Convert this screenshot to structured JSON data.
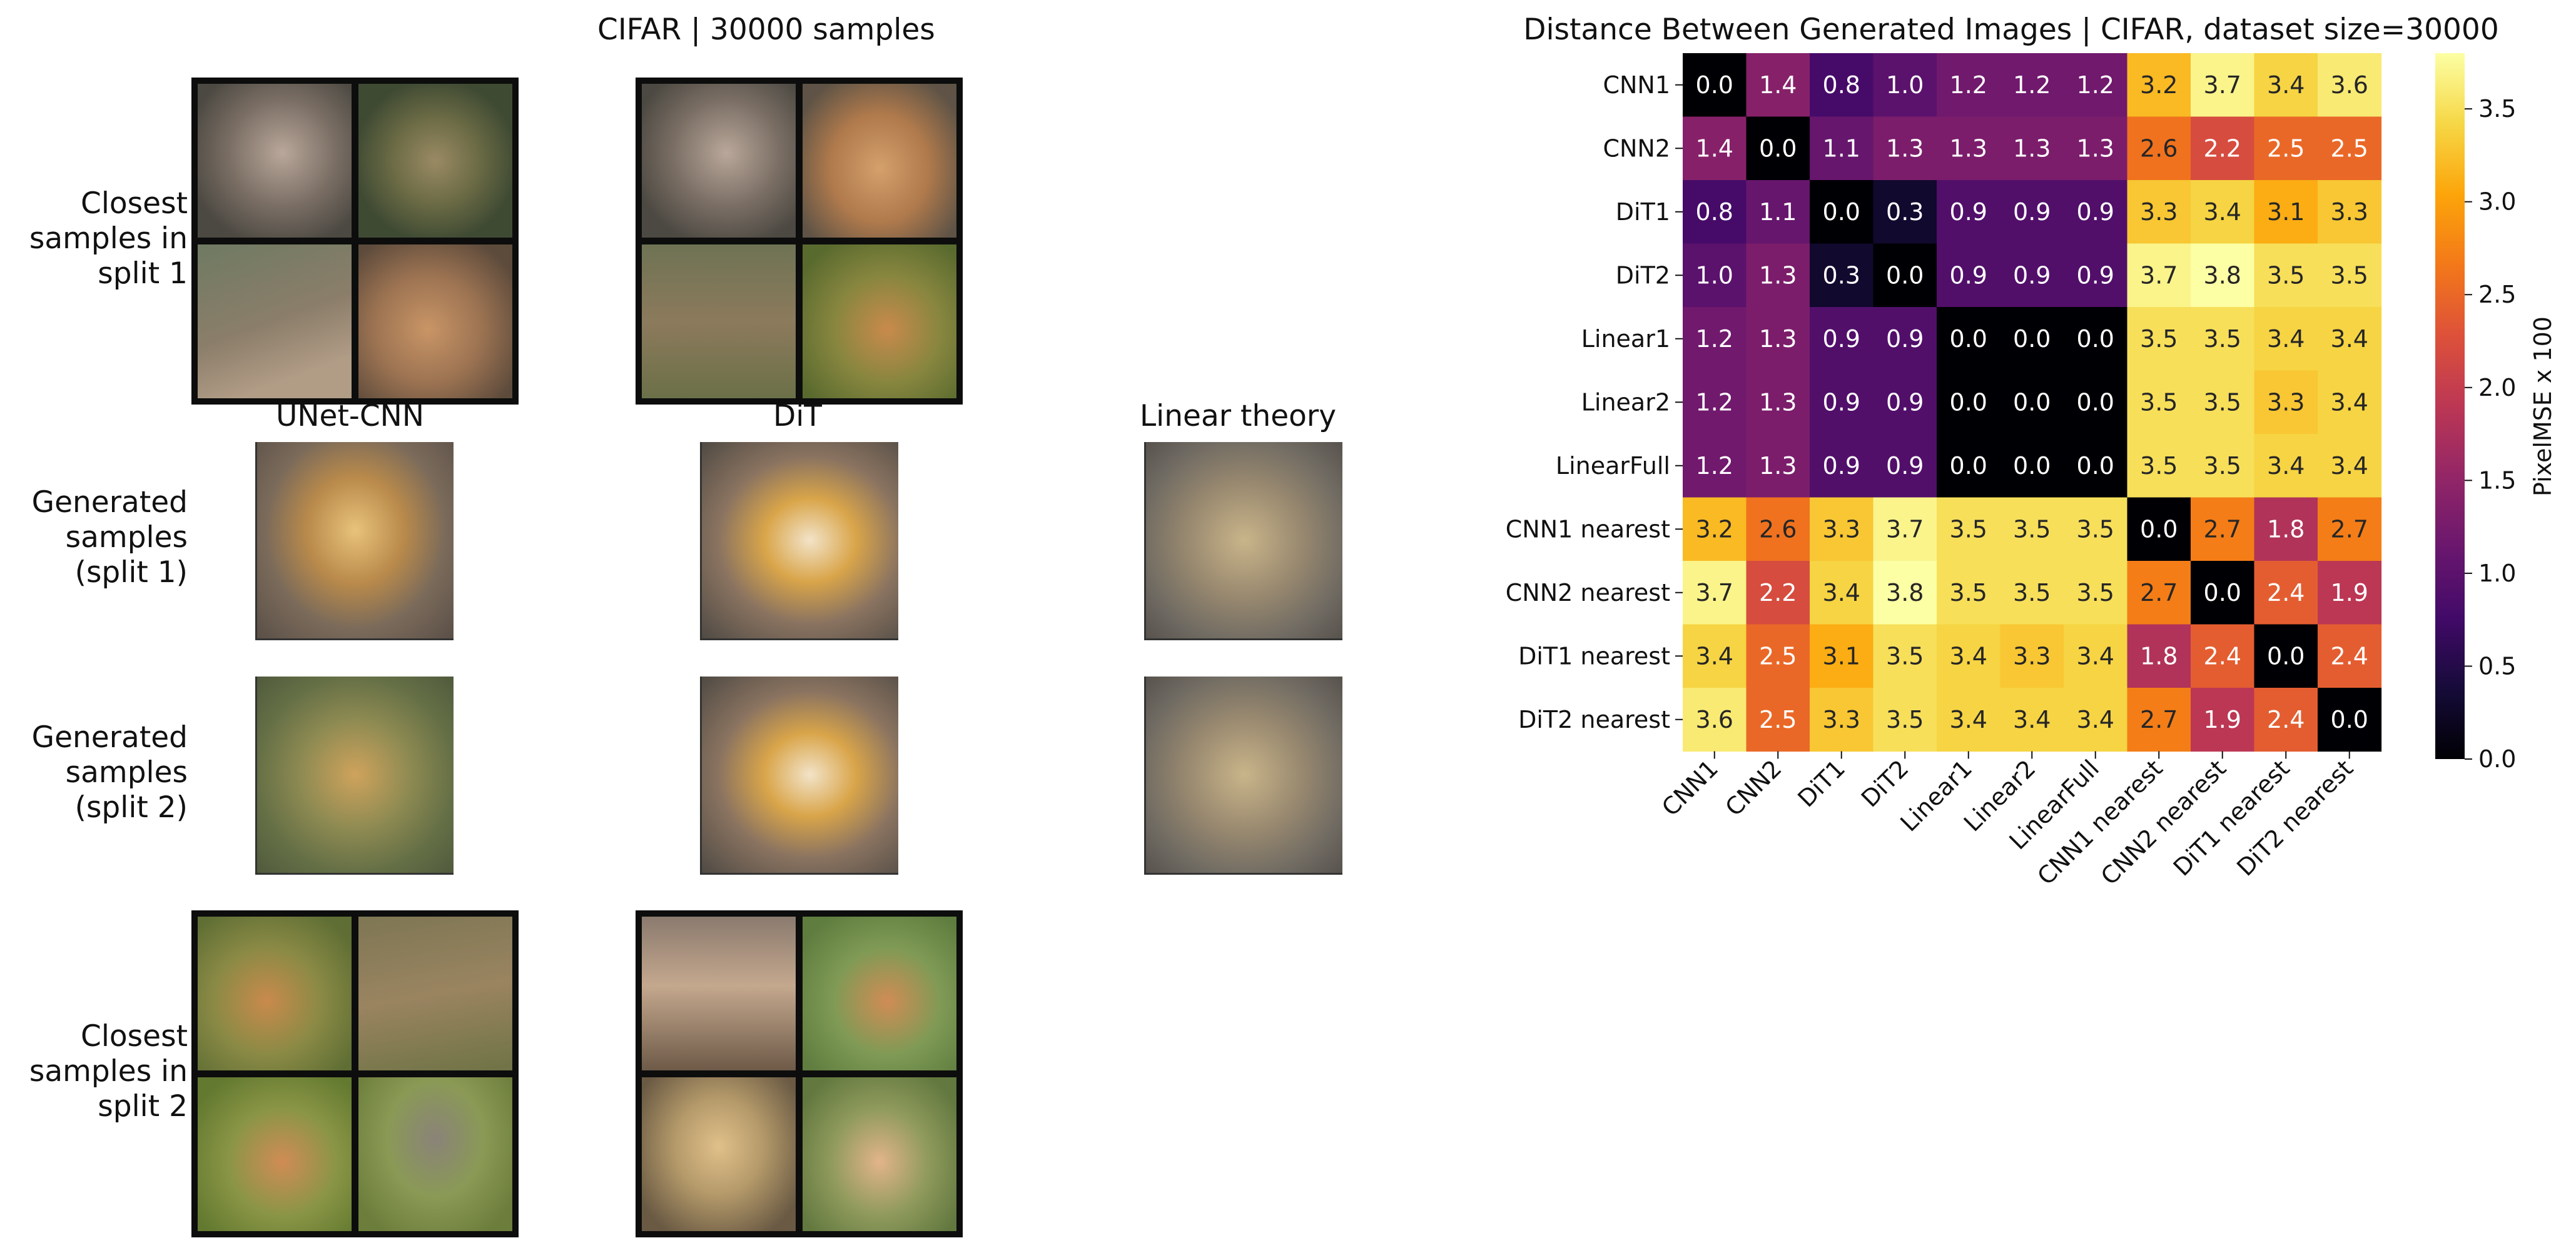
{
  "left_panel": {
    "title": "CIFAR | 30000 samples",
    "row_labels": {
      "closest1": "Closest samples in split 1",
      "gen1": "Generated samples (split 1)",
      "gen2": "Generated samples (split 2)",
      "closest2": "Closest samples in split 2"
    },
    "col_labels": {
      "unet": "UNet-CNN",
      "dit": "DiT",
      "linear": "Linear theory"
    }
  },
  "chart_data": {
    "type": "heatmap",
    "title": "Distance Between Generated Images | CIFAR, dataset size=30000",
    "labels": [
      "CNN1",
      "CNN2",
      "DiT1",
      "DiT2",
      "Linear1",
      "Linear2",
      "LinearFull",
      "CNN1 nearest",
      "CNN2 nearest",
      "DiT1 nearest",
      "DiT2 nearest"
    ],
    "values": [
      [
        0.0,
        1.4,
        0.8,
        1.0,
        1.2,
        1.2,
        1.2,
        3.2,
        3.7,
        3.4,
        3.6
      ],
      [
        1.4,
        0.0,
        1.1,
        1.3,
        1.3,
        1.3,
        1.3,
        2.6,
        2.2,
        2.5,
        2.5
      ],
      [
        0.8,
        1.1,
        0.0,
        0.3,
        0.9,
        0.9,
        0.9,
        3.3,
        3.4,
        3.1,
        3.3
      ],
      [
        1.0,
        1.3,
        0.3,
        0.0,
        0.9,
        0.9,
        0.9,
        3.7,
        3.8,
        3.5,
        3.5
      ],
      [
        1.2,
        1.3,
        0.9,
        0.9,
        0.0,
        0.0,
        0.0,
        3.5,
        3.5,
        3.4,
        3.4
      ],
      [
        1.2,
        1.3,
        0.9,
        0.9,
        0.0,
        0.0,
        0.0,
        3.5,
        3.5,
        3.3,
        3.4
      ],
      [
        1.2,
        1.3,
        0.9,
        0.9,
        0.0,
        0.0,
        0.0,
        3.5,
        3.5,
        3.4,
        3.4
      ],
      [
        3.2,
        2.6,
        3.3,
        3.7,
        3.5,
        3.5,
        3.5,
        0.0,
        2.7,
        1.8,
        2.7
      ],
      [
        3.7,
        2.2,
        3.4,
        3.8,
        3.5,
        3.5,
        3.5,
        2.7,
        0.0,
        2.4,
        1.9
      ],
      [
        3.4,
        2.5,
        3.1,
        3.5,
        3.4,
        3.3,
        3.4,
        1.8,
        2.4,
        0.0,
        2.4
      ],
      [
        3.6,
        2.5,
        3.3,
        3.5,
        3.4,
        3.4,
        3.4,
        2.7,
        1.9,
        2.4,
        0.0
      ]
    ],
    "colorbar": {
      "label": "PixelMSE x 100",
      "range": [
        0.0,
        3.8
      ],
      "ticks": [
        "0.0",
        "0.5",
        "1.0",
        "1.5",
        "2.0",
        "2.5",
        "3.0",
        "3.5"
      ],
      "colormap": "inferno"
    }
  }
}
